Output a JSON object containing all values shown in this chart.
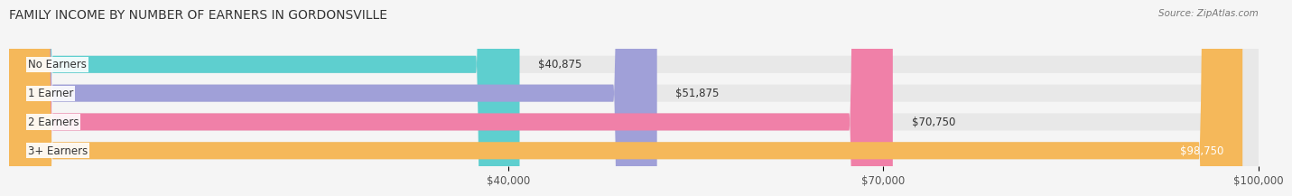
{
  "title": "FAMILY INCOME BY NUMBER OF EARNERS IN GORDONSVILLE",
  "source": "Source: ZipAtlas.com",
  "categories": [
    "No Earners",
    "1 Earner",
    "2 Earners",
    "3+ Earners"
  ],
  "values": [
    40875,
    51875,
    70750,
    98750
  ],
  "bar_colors": [
    "#5ecfcf",
    "#a0a0d8",
    "#f080a8",
    "#f5b85a"
  ],
  "bar_bg_color": "#e8e8e8",
  "value_labels": [
    "$40,875",
    "$51,875",
    "$70,750",
    "$98,750"
  ],
  "xmin": 0,
  "xmax": 100000,
  "xticks": [
    40000,
    70000,
    100000
  ],
  "xtick_labels": [
    "$40,000",
    "$70,000",
    "$100,000"
  ],
  "title_fontsize": 10,
  "label_fontsize": 8.5,
  "value_fontsize": 8.5,
  "source_fontsize": 7.5,
  "background_color": "#f5f5f5",
  "bar_height": 0.6
}
